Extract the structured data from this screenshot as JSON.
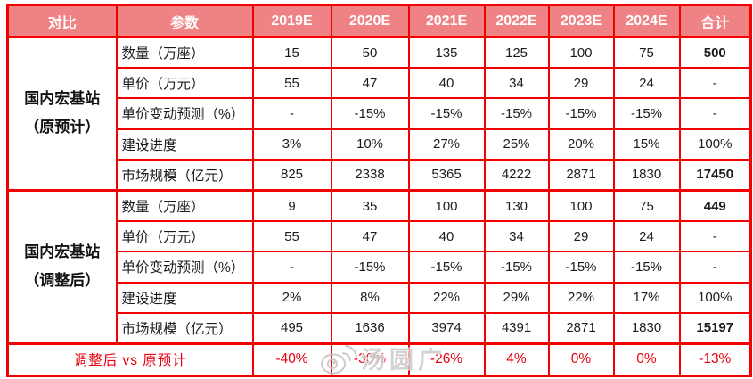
{
  "table": {
    "header": {
      "compare": "对比",
      "parameter": "参数",
      "years": [
        "2019E",
        "2020E",
        "2021E",
        "2022E",
        "2023E",
        "2024E"
      ],
      "total": "合计"
    },
    "sections": [
      {
        "group": {
          "line1": "国内宏基站",
          "line2": "（原预计）"
        },
        "rows": [
          {
            "label": "数量（万座）",
            "values": [
              "15",
              "50",
              "135",
              "125",
              "100",
              "75"
            ],
            "total": "500",
            "total_bold": true
          },
          {
            "label": "单价（万元）",
            "values": [
              "55",
              "47",
              "40",
              "34",
              "29",
              "24"
            ],
            "total": "-",
            "total_bold": false
          },
          {
            "label": "单价变动预测（%）",
            "values": [
              "-",
              "-15%",
              "-15%",
              "-15%",
              "-15%",
              "-15%"
            ],
            "total": "-",
            "total_bold": false
          },
          {
            "label": "建设进度",
            "values": [
              "3%",
              "10%",
              "27%",
              "25%",
              "20%",
              "15%"
            ],
            "total": "100%",
            "total_bold": false
          },
          {
            "label": "市场规模（亿元）",
            "values": [
              "825",
              "2338",
              "5365",
              "4222",
              "2871",
              "1830"
            ],
            "total": "17450",
            "total_bold": true
          }
        ]
      },
      {
        "group": {
          "line1": "国内宏基站",
          "line2": "（调整后）"
        },
        "rows": [
          {
            "label": "数量（万座）",
            "values": [
              "9",
              "35",
              "100",
              "130",
              "100",
              "75"
            ],
            "total": "449",
            "total_bold": true
          },
          {
            "label": "单价（万元）",
            "values": [
              "55",
              "47",
              "40",
              "34",
              "29",
              "24"
            ],
            "total": "-",
            "total_bold": false
          },
          {
            "label": "单价变动预测（%）",
            "values": [
              "-",
              "-15%",
              "-15%",
              "-15%",
              "-15%",
              "-15%"
            ],
            "total": "-",
            "total_bold": false
          },
          {
            "label": "建设进度",
            "values": [
              "2%",
              "8%",
              "22%",
              "29%",
              "22%",
              "17%"
            ],
            "total": "100%",
            "total_bold": false
          },
          {
            "label": "市场规模（亿元）",
            "values": [
              "495",
              "1636",
              "3974",
              "4391",
              "2871",
              "1830"
            ],
            "total": "15197",
            "total_bold": true
          }
        ]
      }
    ],
    "footer": {
      "label": "调整后 vs 原预计",
      "values": [
        "-40%",
        "-30%",
        "-26%",
        "4%",
        "0%",
        "0%"
      ],
      "total": "-13%"
    }
  },
  "watermark": {
    "icon": "weibo-icon",
    "text": "汤圆广"
  },
  "colors": {
    "header_bg": "#ef8285",
    "grid_line": "#f40000",
    "footer_text": "#e8000d",
    "body_text": "#1c1c1c",
    "header_text": "#ffffff"
  },
  "chart_data": {
    "type": "table",
    "columns": [
      "对比",
      "参数",
      "2019E",
      "2020E",
      "2021E",
      "2022E",
      "2023E",
      "2024E",
      "合计"
    ],
    "rows": [
      [
        "国内宏基站（原预计）",
        "数量（万座）",
        15,
        50,
        135,
        125,
        100,
        75,
        500
      ],
      [
        "国内宏基站（原预计）",
        "单价（万元）",
        55,
        47,
        40,
        34,
        29,
        24,
        "-"
      ],
      [
        "国内宏基站（原预计）",
        "单价变动预测（%）",
        "-",
        "-15%",
        "-15%",
        "-15%",
        "-15%",
        "-15%",
        "-"
      ],
      [
        "国内宏基站（原预计）",
        "建设进度",
        "3%",
        "10%",
        "27%",
        "25%",
        "20%",
        "15%",
        "100%"
      ],
      [
        "国内宏基站（原预计）",
        "市场规模（亿元）",
        825,
        2338,
        5365,
        4222,
        2871,
        1830,
        17450
      ],
      [
        "国内宏基站（调整后）",
        "数量（万座）",
        9,
        35,
        100,
        130,
        100,
        75,
        449
      ],
      [
        "国内宏基站（调整后）",
        "单价（万元）",
        55,
        47,
        40,
        34,
        29,
        24,
        "-"
      ],
      [
        "国内宏基站（调整后）",
        "单价变动预测（%）",
        "-",
        "-15%",
        "-15%",
        "-15%",
        "-15%",
        "-15%",
        "-"
      ],
      [
        "国内宏基站（调整后）",
        "建设进度",
        "2%",
        "8%",
        "22%",
        "29%",
        "22%",
        "17%",
        "100%"
      ],
      [
        "国内宏基站（调整后）",
        "市场规模（亿元）",
        495,
        1636,
        3974,
        4391,
        2871,
        1830,
        15197
      ],
      [
        "调整后 vs 原预计",
        "",
        "-40%",
        "-30%",
        "-26%",
        "4%",
        "0%",
        "0%",
        "-13%"
      ]
    ]
  }
}
